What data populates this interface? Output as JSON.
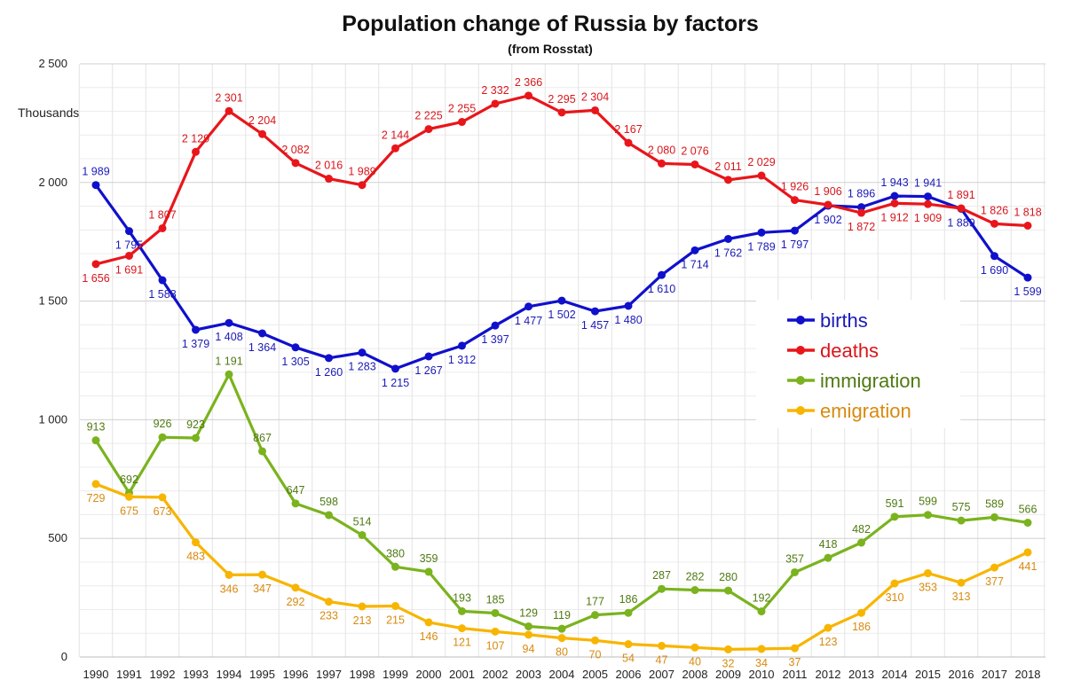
{
  "chart_data": {
    "type": "line",
    "title": "Population change of Russia by factors",
    "subtitle": "(from Rosstat)",
    "ylabel": "Thousands",
    "xlabel": "",
    "ylim": [
      0,
      2500
    ],
    "yticks": [
      0,
      500,
      1000,
      1500,
      2000,
      2500
    ],
    "ytick_labels": [
      "0",
      "500",
      "1 000",
      "1 500",
      "2 000",
      "2 500"
    ],
    "grid": true,
    "legend_position": "right",
    "x": [
      "1990",
      "1991",
      "1992",
      "1993",
      "1994",
      "1995",
      "1996",
      "1997",
      "1998",
      "1999",
      "2000",
      "2001",
      "2002",
      "2003",
      "2004",
      "2005",
      "2006",
      "2007",
      "2008",
      "2009",
      "2010",
      "2011",
      "2012",
      "2013",
      "2014",
      "2015",
      "2016",
      "2017",
      "2018"
    ],
    "series": [
      {
        "name": "births",
        "color": "#1010cc",
        "label_color": "#1a1ab8",
        "values": [
          1989,
          1795,
          1588,
          1379,
          1408,
          1364,
          1305,
          1260,
          1283,
          1215,
          1267,
          1312,
          1397,
          1477,
          1502,
          1457,
          1480,
          1610,
          1714,
          1762,
          1789,
          1797,
          1902,
          1896,
          1943,
          1941,
          1889,
          1690,
          1599
        ],
        "labels": [
          "1 989",
          "1 795",
          "1 588",
          "1 379",
          "1 408",
          "1 364",
          "1 305",
          "1 260",
          "1 283",
          "1 215",
          "1 267",
          "1 312",
          "1 397",
          "1 477",
          "1 502",
          "1 457",
          "1 480",
          "1 610",
          "1 714",
          "1 762",
          "1 789",
          "1 797",
          "1 902",
          "1 896",
          "1 943",
          "1 941",
          "1 889",
          "1 690",
          "1 599"
        ]
      },
      {
        "name": "deaths",
        "color": "#e8161b",
        "label_color": "#d8161b",
        "values": [
          1656,
          1691,
          1807,
          2129,
          2301,
          2204,
          2082,
          2016,
          1989,
          2144,
          2225,
          2255,
          2332,
          2366,
          2295,
          2304,
          2167,
          2080,
          2076,
          2011,
          2029,
          1926,
          1906,
          1872,
          1912,
          1909,
          1891,
          1826,
          1818
        ],
        "labels": [
          "1 656",
          "1 691",
          "1 807",
          "2 129",
          "2 301",
          "2 204",
          "2 082",
          "2 016",
          "1 989",
          "2 144",
          "2 225",
          "2 255",
          "2 332",
          "2 366",
          "2 295",
          "2 304",
          "2 167",
          "2 080",
          "2 076",
          "2 011",
          "2 029",
          "1 926",
          "1 906",
          "1 872",
          "1 912",
          "1 909",
          "1 891",
          "1 826",
          "1 818"
        ]
      },
      {
        "name": "immigration",
        "color": "#7ab31e",
        "label_color": "#4f7a12",
        "values": [
          913,
          692,
          926,
          923,
          1191,
          867,
          647,
          598,
          514,
          380,
          359,
          193,
          185,
          129,
          119,
          177,
          186,
          287,
          282,
          280,
          192,
          357,
          418,
          482,
          591,
          599,
          575,
          589,
          566
        ],
        "labels": [
          "913",
          "692",
          "926",
          "923",
          "1 191",
          "867",
          "647",
          "598",
          "514",
          "380",
          "359",
          "193",
          "185",
          "129",
          "119",
          "177",
          "186",
          "287",
          "282",
          "280",
          "192",
          "357",
          "418",
          "482",
          "591",
          "599",
          "575",
          "589",
          "566"
        ]
      },
      {
        "name": "emigration",
        "color": "#f7b500",
        "label_color": "#d88a10",
        "values": [
          729,
          675,
          673,
          483,
          346,
          347,
          292,
          233,
          213,
          215,
          146,
          121,
          107,
          94,
          80,
          70,
          54,
          47,
          40,
          32,
          34,
          37,
          123,
          186,
          310,
          353,
          313,
          377,
          441
        ],
        "labels": [
          "729",
          "675",
          "673",
          "483",
          "346",
          "347",
          "292",
          "233",
          "213",
          "215",
          "146",
          "121",
          "107",
          "94",
          "80",
          "70",
          "54",
          "47",
          "40",
          "32",
          "34",
          "37",
          "123",
          "186",
          "310",
          "353",
          "313",
          "377",
          "441"
        ]
      }
    ]
  }
}
